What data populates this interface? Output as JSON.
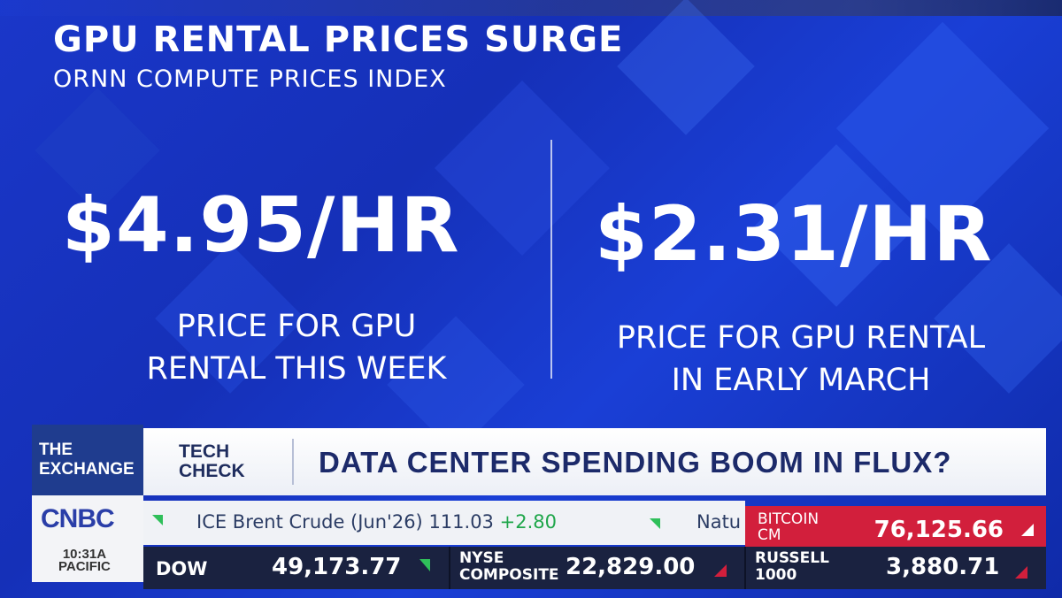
{
  "graphic": {
    "title": "GPU RENTAL PRICES SURGE",
    "subtitle": "ORNN COMPUTE PRICES INDEX",
    "left": {
      "price": "$4.95/HR",
      "desc_line1": "PRICE FOR GPU",
      "desc_line2": "RENTAL THIS WEEK"
    },
    "right": {
      "price": "$2.31/HR",
      "desc_line1": "PRICE FOR GPU RENTAL",
      "desc_line2": "IN EARLY MARCH"
    }
  },
  "lower_third": {
    "show_line1": "THE",
    "show_line2": "EXCHANGE",
    "segment_line1": "TECH",
    "segment_line2": "CHECK",
    "headline": "DATA CENTER SPENDING BOOM IN FLUX?"
  },
  "branding": {
    "network": "CNBC",
    "time": "10:31A",
    "zone": "PACIFIC"
  },
  "ticker": {
    "crawl_name": "ICE Brent Crude (Jun'26)",
    "crawl_value": "111.03",
    "crawl_change": "+2.80",
    "crawl_next": "Natu",
    "bitcoin_line1": "BITCOIN",
    "bitcoin_line2": "CM",
    "bitcoin_value": "76,125.66",
    "dow_name": "DOW",
    "dow_value": "49,173.77",
    "nyse_line1": "NYSE",
    "nyse_line2": "COMPOSITE",
    "nyse_value": "22,829.00",
    "russell_line1": "RUSSELL",
    "russell_line2": "1000",
    "russell_value": "3,880.71"
  },
  "colors": {
    "background_blue": "#1a37c9",
    "bitcoin_red": "#d21f3c",
    "up_green": "#2fbf5a",
    "ticker_dark": "#1a2240"
  }
}
